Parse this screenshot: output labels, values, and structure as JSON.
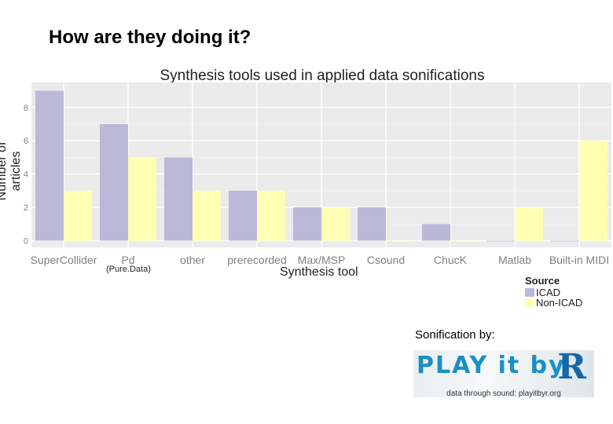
{
  "slide": {
    "title": "How are they doing it?",
    "pd_note": "(Pure.Data)",
    "credit_label": "Sonification by:"
  },
  "logo": {
    "text": "PLAY it by R",
    "tagline": "data through sound: playitbyr.org"
  },
  "chart_data": {
    "type": "bar",
    "title": "Synthesis tools used in applied data sonifications",
    "xlabel": "Synthesis tool",
    "ylabel": "Number of articles",
    "categories": [
      "SuperCollider",
      "Pd",
      "other",
      "prerecorded",
      "Max/MSP",
      "Csound",
      "ChucK",
      "Matlab",
      "Built-in MIDI"
    ],
    "series": [
      {
        "name": "ICAD",
        "color": "#bcb8da",
        "values": [
          9,
          7,
          5,
          3,
          2,
          2,
          1,
          0,
          0
        ]
      },
      {
        "name": "Non-ICAD",
        "color": "#ffffb3",
        "values": [
          3,
          5,
          3,
          3,
          2,
          0,
          0,
          2,
          6
        ]
      }
    ],
    "yticks": [
      0,
      2,
      4,
      6,
      8
    ],
    "ylim": [
      -0.4,
      9.5
    ],
    "grid": true,
    "legend_title": "Source",
    "legend_position": "bottom-right"
  }
}
